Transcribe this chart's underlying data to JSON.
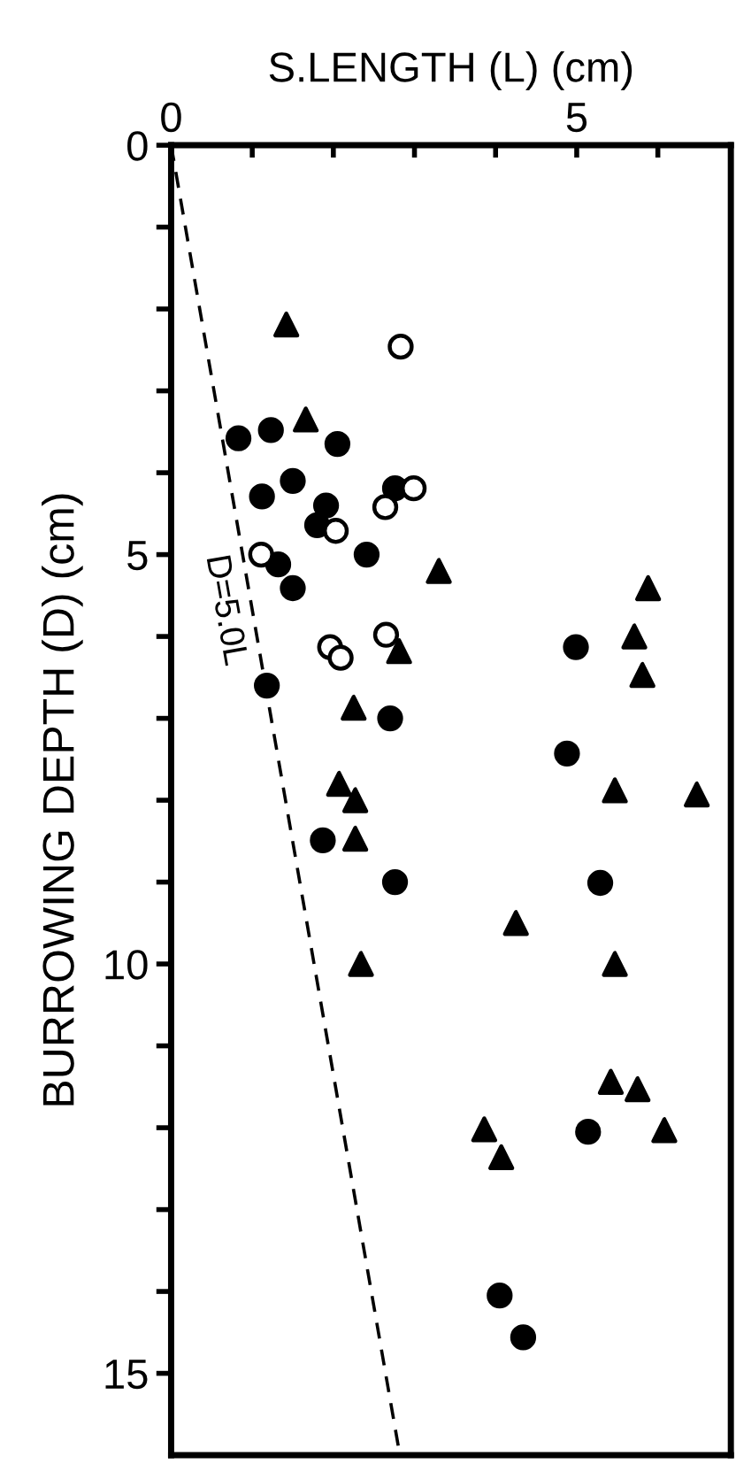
{
  "chart_data": {
    "type": "scatter",
    "xlabel": "S.LENGTH (L) (cm)",
    "ylabel": "BURROWING DEPTH (D) (cm)",
    "xlim": [
      0,
      6.9
    ],
    "ylim": [
      16,
      0
    ],
    "xticks": [
      0,
      {
        "value": 1,
        "label": null
      },
      {
        "value": 2,
        "label": null
      },
      {
        "value": 3,
        "label": null
      },
      {
        "value": 4,
        "label": null
      },
      5,
      {
        "value": 6,
        "label": null
      }
    ],
    "yticks": [
      0,
      {
        "value": 1,
        "label": null
      },
      {
        "value": 2,
        "label": null
      },
      {
        "value": 3,
        "label": null
      },
      {
        "value": 4,
        "label": null
      },
      5,
      {
        "value": 6,
        "label": null
      },
      {
        "value": 7,
        "label": null
      },
      {
        "value": 8,
        "label": null
      },
      {
        "value": 9,
        "label": null
      },
      10,
      {
        "value": 11,
        "label": null
      },
      {
        "value": 12,
        "label": null
      },
      {
        "value": 13,
        "label": null
      },
      {
        "value": 14,
        "label": null
      },
      15
    ],
    "grid": false,
    "legend": false,
    "annotations": [
      "D=5.0L"
    ],
    "series": [
      {
        "marker": "circle",
        "color": "#000000",
        "x": [
          0.83,
          1.23,
          2.05,
          1.5,
          1.12,
          1.91,
          2.76,
          1.8,
          2.41,
          1.32,
          1.5,
          1.18,
          2.7,
          1.87,
          2.76,
          4.99,
          4.88,
          5.29,
          5.14,
          4.05,
          4.34
        ],
        "values": [
          3.58,
          3.48,
          3.65,
          4.1,
          4.29,
          4.4,
          4.19,
          4.64,
          5.0,
          5.12,
          5.41,
          6.6,
          7.0,
          8.49,
          9.0,
          6.13,
          7.43,
          9.01,
          12.05,
          14.05,
          14.56
        ]
      },
      {
        "marker": "circle",
        "color": "#ffffff",
        "x": [
          2.83,
          2.99,
          2.64,
          2.03,
          1.11,
          2.65,
          1.96,
          2.09
        ],
        "values": [
          2.46,
          4.19,
          4.42,
          4.71,
          5.0,
          5.98,
          6.13,
          6.26
        ]
      },
      {
        "marker": "triangle",
        "color": "#000000",
        "x": [
          1.42,
          1.66,
          3.3,
          2.81,
          2.25,
          2.07,
          2.27,
          2.27,
          4.25,
          2.34,
          5.88,
          5.71,
          5.81,
          5.47,
          6.48,
          5.47,
          5.42,
          5.75,
          6.08,
          3.86,
          4.07
        ],
        "values": [
          2.19,
          3.35,
          5.2,
          6.18,
          6.87,
          7.8,
          8.0,
          8.47,
          9.5,
          10.0,
          5.41,
          6.0,
          6.47,
          7.88,
          7.93,
          10.0,
          11.44,
          11.53,
          12.03,
          12.02,
          12.36
        ]
      },
      {
        "type": "line",
        "line_style": "dashed",
        "color": "#000000",
        "marker": "none",
        "x": [
          0,
          2.82
        ],
        "values": [
          0,
          16
        ]
      }
    ]
  }
}
